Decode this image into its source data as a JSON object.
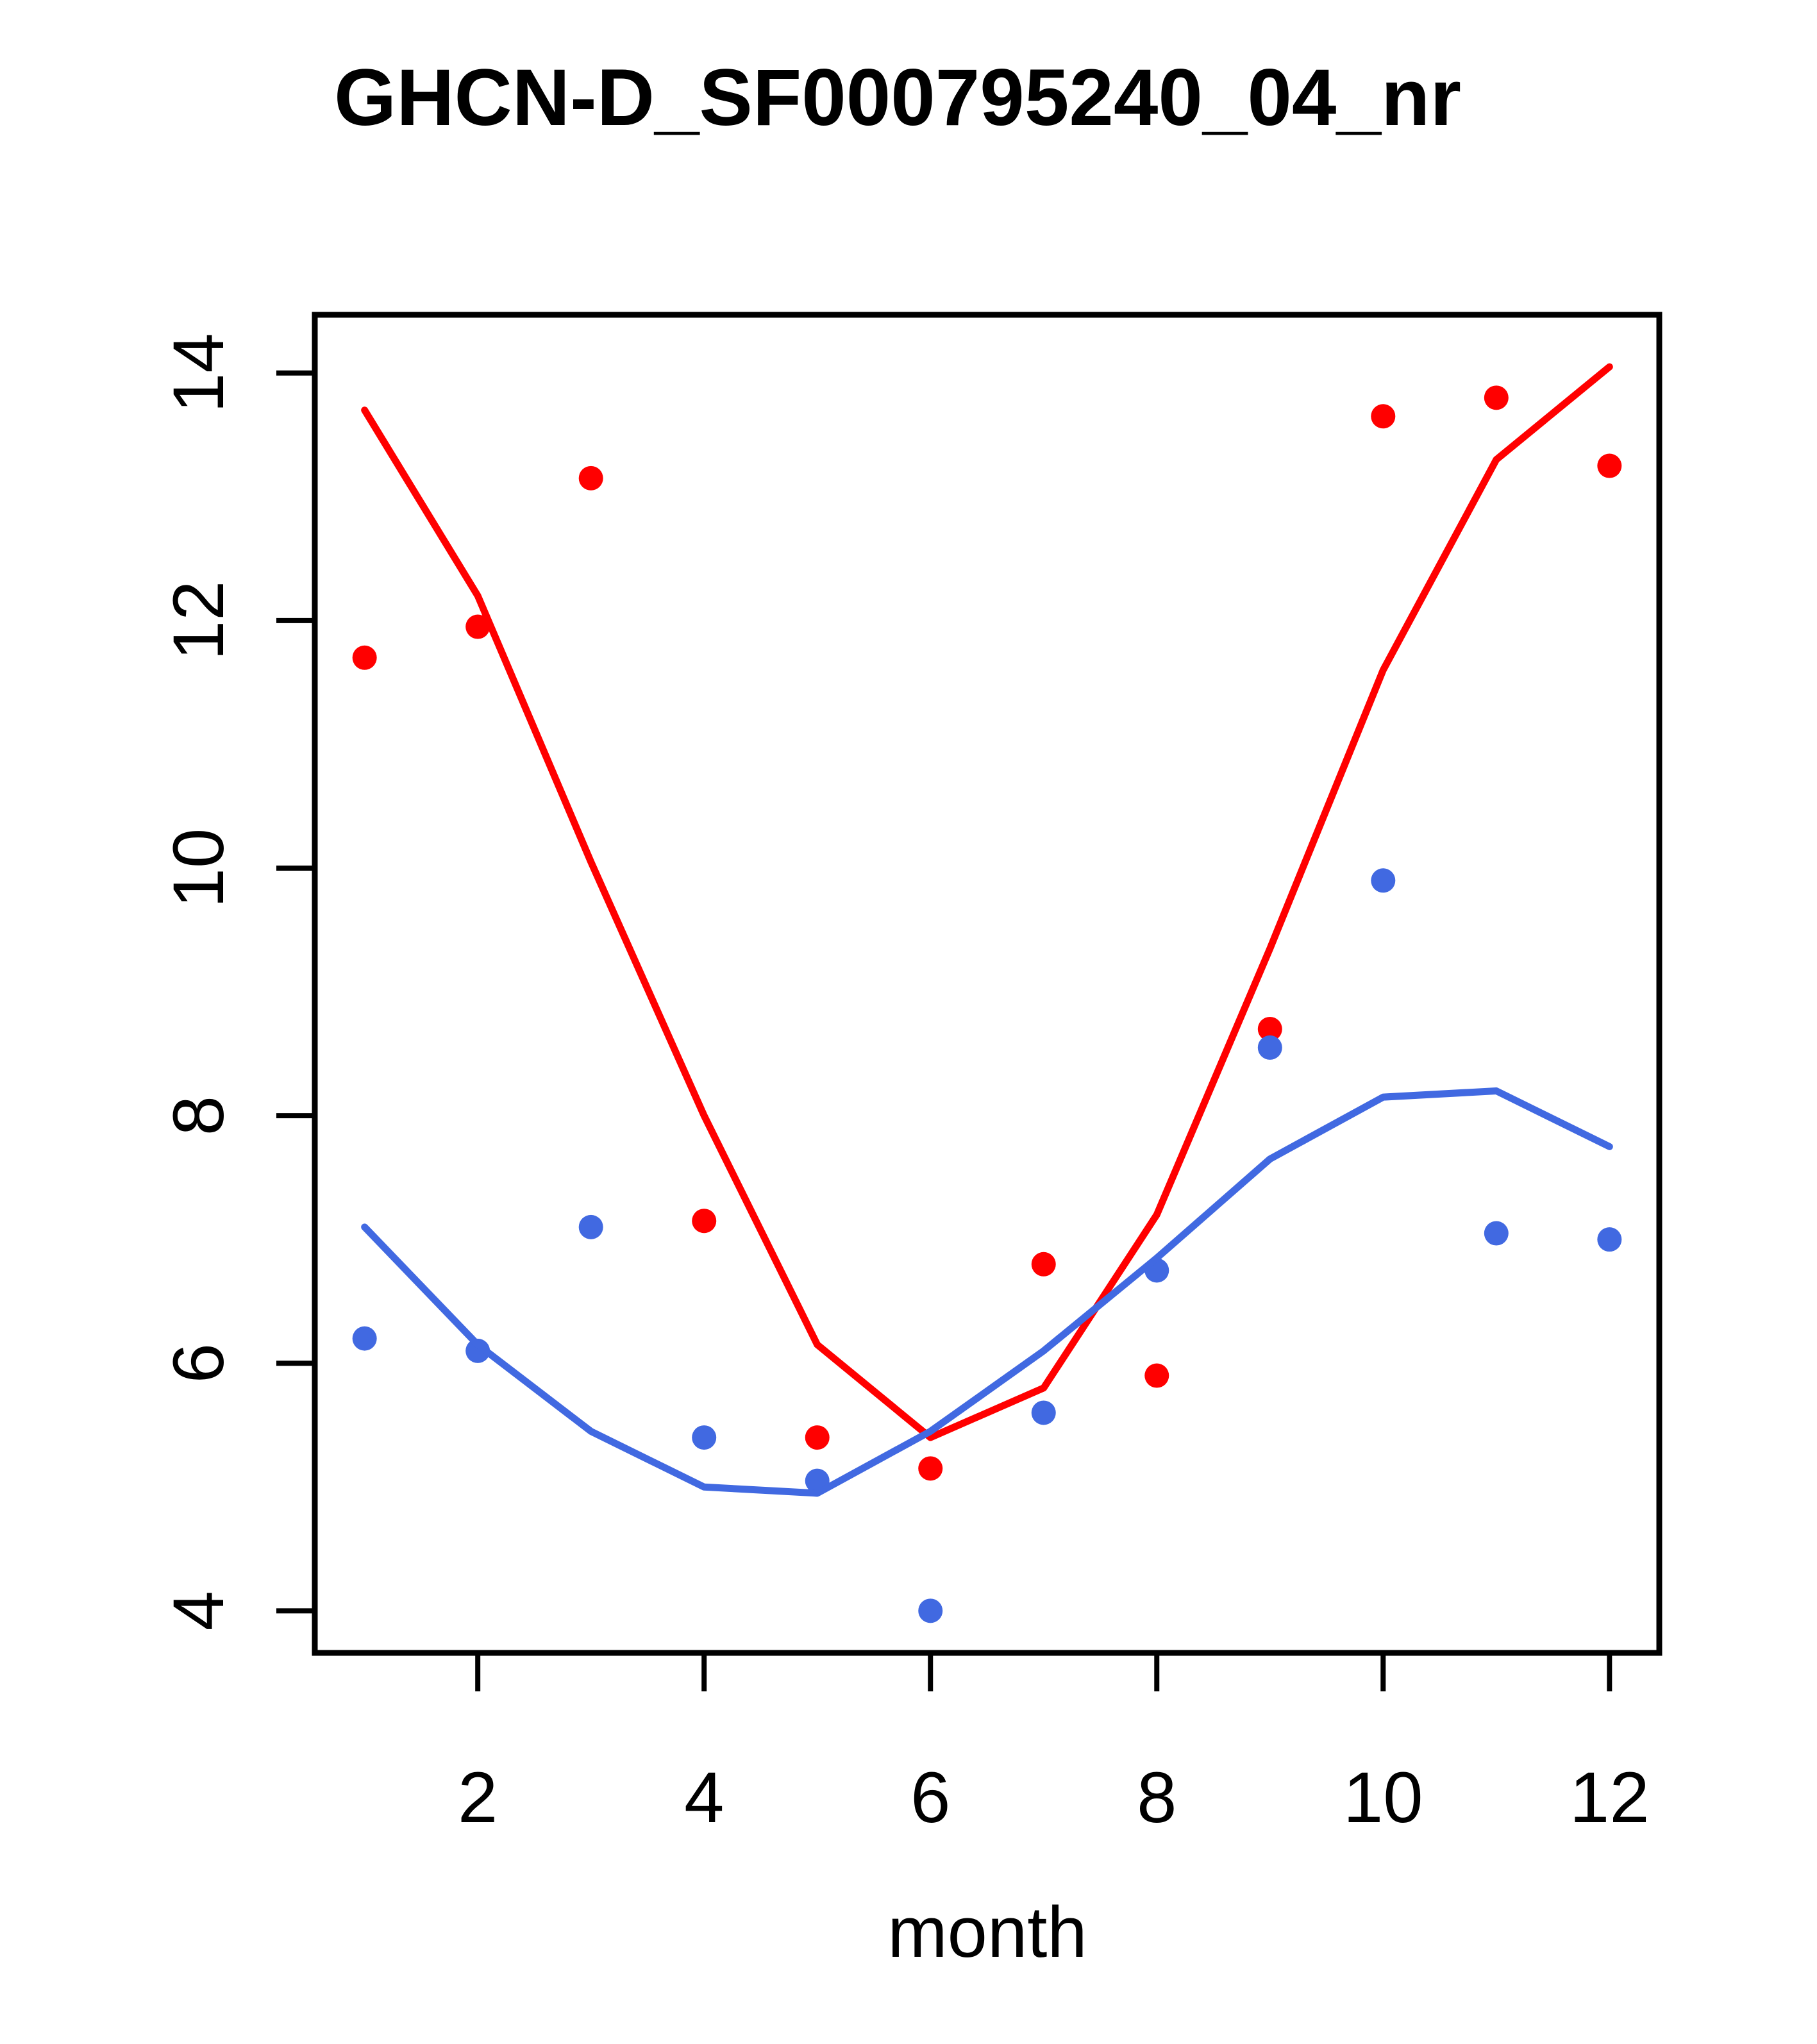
{
  "figure": {
    "background": "#FFFFFF",
    "axis_color": "#000000"
  },
  "chart_data": {
    "type": "scatter",
    "title": "GHCN-D_SF000795240_04_nr",
    "xlabel": "month",
    "ylabel": "",
    "x": [
      1,
      2,
      3,
      4,
      5,
      6,
      7,
      8,
      9,
      10,
      11,
      12
    ],
    "xlim": [
      0.56,
      12.44
    ],
    "ylim": [
      3.66,
      14.47
    ],
    "x_ticks": [
      2,
      4,
      6,
      8,
      10,
      12
    ],
    "y_ticks": [
      4,
      6,
      8,
      10,
      12,
      14
    ],
    "grid": false,
    "legend_position": "none",
    "series": [
      {
        "name": "red-points",
        "type": "scatter",
        "color": "#FF0000",
        "values": [
          11.7,
          11.95,
          13.15,
          7.15,
          5.4,
          5.15,
          6.8,
          5.9,
          8.7,
          13.65,
          13.8,
          13.25
        ]
      },
      {
        "name": "blue-points",
        "type": "scatter",
        "color": "#4169E1",
        "values": [
          6.2,
          6.1,
          7.1,
          5.4,
          5.05,
          4.0,
          5.6,
          6.75,
          8.55,
          9.9,
          7.05,
          7.0
        ]
      },
      {
        "name": "red-fit-line",
        "type": "line",
        "color": "#FF0000",
        "values": [
          13.7,
          12.2,
          10.05,
          8.0,
          6.15,
          5.4,
          5.8,
          7.2,
          9.35,
          11.6,
          13.3,
          14.05
        ]
      },
      {
        "name": "blue-fit-line",
        "type": "line",
        "color": "#4169E1",
        "values": [
          7.1,
          6.15,
          5.45,
          5.0,
          4.95,
          5.45,
          6.1,
          6.85,
          7.65,
          8.15,
          8.2,
          7.75
        ]
      }
    ]
  }
}
